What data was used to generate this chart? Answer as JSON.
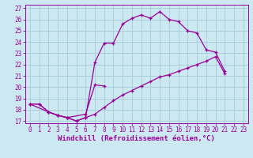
{
  "xlabel": "Windchill (Refroidissement éolien,°C)",
  "xlim": [
    -0.5,
    23.5
  ],
  "ylim": [
    16.8,
    27.3
  ],
  "xticks": [
    0,
    1,
    2,
    3,
    4,
    5,
    6,
    7,
    8,
    9,
    10,
    11,
    12,
    13,
    14,
    15,
    16,
    17,
    18,
    19,
    20,
    21,
    22,
    23
  ],
  "yticks": [
    17,
    18,
    19,
    20,
    21,
    22,
    23,
    24,
    25,
    26,
    27
  ],
  "bg_color": "#cce8f0",
  "grid_color": "#aacfdc",
  "line_color": "#990099",
  "line1_x": [
    0,
    1,
    2,
    3,
    4,
    5,
    6,
    7,
    8,
    9,
    10,
    11,
    12,
    13,
    14,
    15,
    16,
    17,
    18,
    19,
    20,
    21
  ],
  "line1_y": [
    18.5,
    18.5,
    17.8,
    17.5,
    17.3,
    17.0,
    17.3,
    22.2,
    23.9,
    23.9,
    25.6,
    26.1,
    26.4,
    26.1,
    26.7,
    26.0,
    25.8,
    25.0,
    24.8,
    23.3,
    23.1,
    21.4
  ],
  "line2_x": [
    0,
    2,
    3,
    4,
    6,
    7,
    8
  ],
  "line2_y": [
    18.5,
    17.8,
    17.5,
    17.3,
    17.6,
    20.2,
    20.1
  ],
  "line3_x": [
    0,
    1,
    2,
    3,
    4,
    5,
    6,
    7,
    8,
    9,
    10,
    11,
    12,
    13,
    14,
    15,
    16,
    17,
    18,
    19,
    20,
    21
  ],
  "line3_y": [
    18.5,
    18.5,
    17.8,
    17.5,
    17.3,
    17.0,
    17.3,
    17.6,
    18.2,
    18.8,
    19.3,
    19.7,
    20.1,
    20.5,
    20.9,
    21.1,
    21.4,
    21.7,
    22.0,
    22.3,
    22.7,
    21.2
  ],
  "font_family": "monospace",
  "tick_fontsize": 5.5,
  "xlabel_fontsize": 6.5
}
